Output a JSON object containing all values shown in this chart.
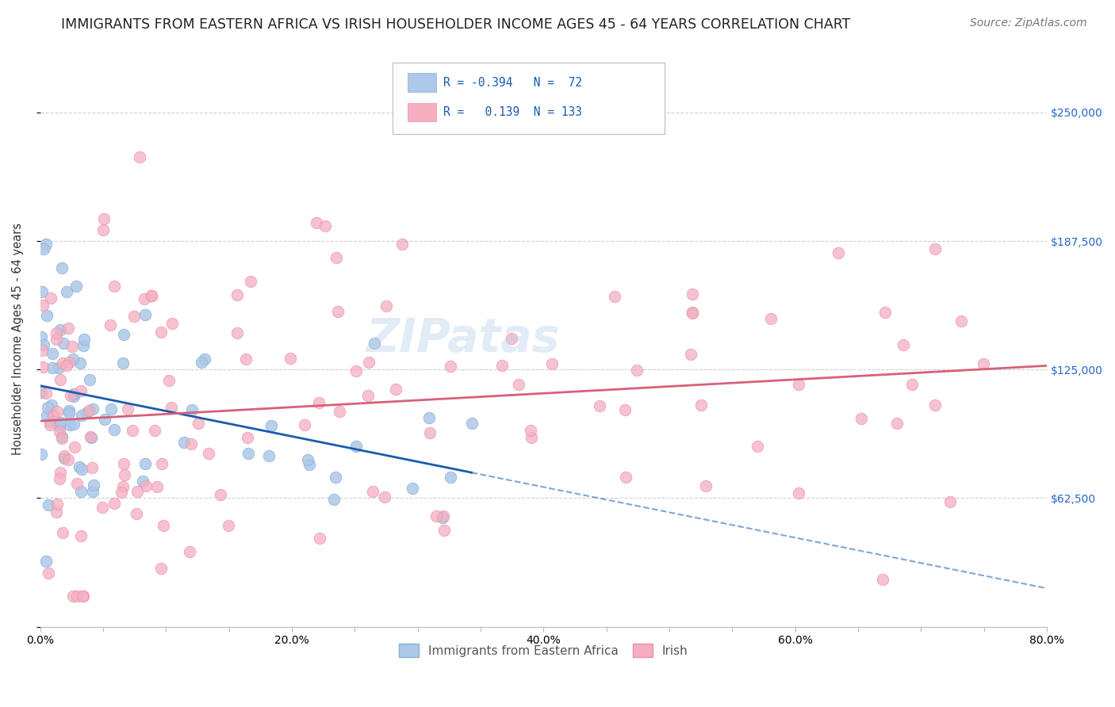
{
  "title": "IMMIGRANTS FROM EASTERN AFRICA VS IRISH HOUSEHOLDER INCOME AGES 45 - 64 YEARS CORRELATION CHART",
  "source": "Source: ZipAtlas.com",
  "ylabel": "Householder Income Ages 45 - 64 years",
  "legend_label1": "Immigrants from Eastern Africa",
  "legend_label2": "Irish",
  "r1": -0.394,
  "n1": 72,
  "r2": 0.139,
  "n2": 133,
  "color1": "#adc8e8",
  "color2": "#f5aec0",
  "line1_color": "#1a5cb0",
  "line2_color": "#d8607a",
  "xmin": 0.0,
  "xmax": 0.8,
  "ymin": 0,
  "ymax": 280000,
  "yticks": [
    0,
    62500,
    125000,
    187500,
    250000
  ],
  "ytick_labels": [
    "",
    "$62,500",
    "$125,000",
    "$187,500",
    "$250,000"
  ],
  "xtick_labels": [
    "0.0%",
    "",
    "",
    "",
    "20.0%",
    "",
    "",
    "",
    "40.0%",
    "",
    "",
    "",
    "60.0%",
    "",
    "",
    "",
    "80.0%"
  ],
  "xtick_positions": [
    0.0,
    0.05,
    0.1,
    0.15,
    0.2,
    0.25,
    0.3,
    0.35,
    0.4,
    0.45,
    0.5,
    0.55,
    0.6,
    0.65,
    0.7,
    0.75,
    0.8
  ],
  "grid_color": "#d0d0d0",
  "background": "#ffffff",
  "title_fontsize": 12.5,
  "axis_label_fontsize": 10.5,
  "tick_fontsize": 10,
  "source_fontsize": 10
}
